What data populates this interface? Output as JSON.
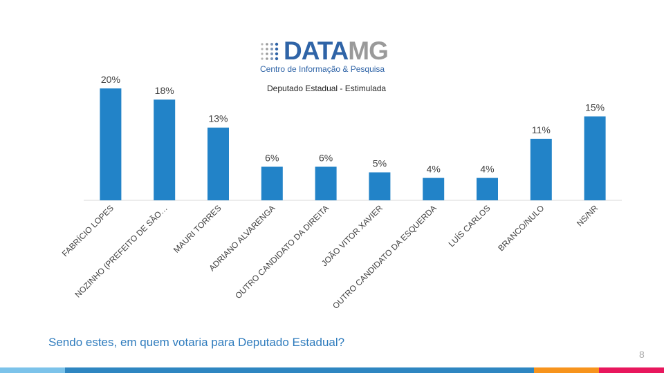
{
  "logo": {
    "word_primary": "DATA",
    "word_secondary": "MG",
    "subtitle": "Centro de Informação & Pesquisa",
    "primary_color": "#2f64a7",
    "secondary_color": "#9a9a9a"
  },
  "chart_title": "Deputado  Estadual - Estimulada",
  "question": "Sendo estes, em quem votaria para Deputado Estadual?",
  "page_number": "8",
  "colors": {
    "bar": "#2283c8",
    "footer": [
      "#7cc3ea",
      "#2e86c1",
      "#f7941d",
      "#e8175d"
    ]
  },
  "chart_data": {
    "type": "bar",
    "title": "Deputado  Estadual - Estimulada",
    "categories": [
      "FABRÍCIO LOPES",
      "NOZINHO (PREFEITO DE SÃO…",
      "MAURI TORRES",
      "ADRIANO ALVARENGA",
      "OUTRO CANDIDATO DA DIREITA",
      "JOÃO VITOR XAVIER",
      "OUTRO CANDIDATO DA ESQUERDA",
      "LUÍS CARLOS",
      "BRANCO/NULO",
      "NS/NR"
    ],
    "values": [
      20,
      18,
      13,
      6,
      6,
      5,
      4,
      4,
      11,
      15
    ],
    "data_labels": [
      "20%",
      "18%",
      "13%",
      "6%",
      "6%",
      "5%",
      "4%",
      "4%",
      "11%",
      "15%"
    ],
    "unit": "%",
    "ylim": [
      0,
      20
    ],
    "grid": false,
    "legend": "none"
  }
}
